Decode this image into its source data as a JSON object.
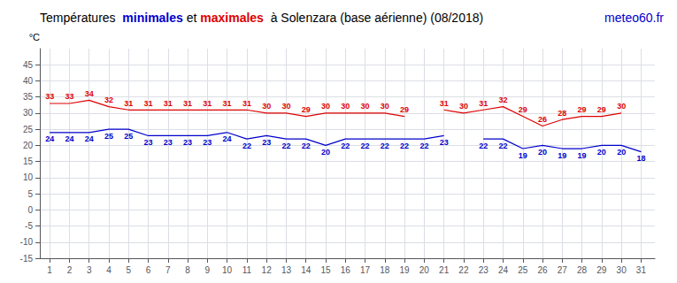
{
  "chart_data": {
    "type": "line",
    "title": "Températures  minimales et maximales  à Solenzara (base aérienne) (08/2018)",
    "annotations": [
      "meteo60.fr"
    ],
    "y_label": "°C",
    "x": [
      1,
      2,
      3,
      4,
      5,
      6,
      7,
      8,
      9,
      10,
      11,
      12,
      13,
      14,
      15,
      16,
      17,
      18,
      19,
      20,
      21,
      22,
      23,
      24,
      25,
      26,
      27,
      28,
      29,
      30,
      31
    ],
    "series": [
      {
        "name": "maximales",
        "color": "#dd0000",
        "values": [
          33,
          33,
          34,
          32,
          31,
          31,
          31,
          31,
          31,
          31,
          31,
          30,
          30,
          29,
          30,
          30,
          30,
          30,
          29,
          null,
          31,
          30,
          31,
          32,
          29,
          26,
          28,
          29,
          29,
          30,
          null
        ]
      },
      {
        "name": "minimales",
        "color": "#0000cc",
        "values": [
          24,
          24,
          24,
          25,
          25,
          23,
          23,
          23,
          23,
          24,
          22,
          23,
          22,
          22,
          20,
          22,
          22,
          22,
          22,
          22,
          23,
          null,
          22,
          22,
          19,
          20,
          19,
          19,
          20,
          20,
          18
        ]
      }
    ],
    "xlim": [
      0.5,
      31.7
    ],
    "xticks": [
      1,
      2,
      3,
      4,
      5,
      6,
      7,
      8,
      9,
      10,
      11,
      12,
      13,
      14,
      15,
      16,
      17,
      18,
      19,
      20,
      21,
      22,
      23,
      24,
      25,
      26,
      27,
      28,
      29,
      30,
      31
    ],
    "ylim": [
      -15,
      50
    ],
    "yticks": [
      -15,
      -10,
      -5,
      0,
      5,
      10,
      15,
      20,
      25,
      30,
      35,
      40,
      45
    ],
    "grid": true,
    "data_labels": true
  }
}
